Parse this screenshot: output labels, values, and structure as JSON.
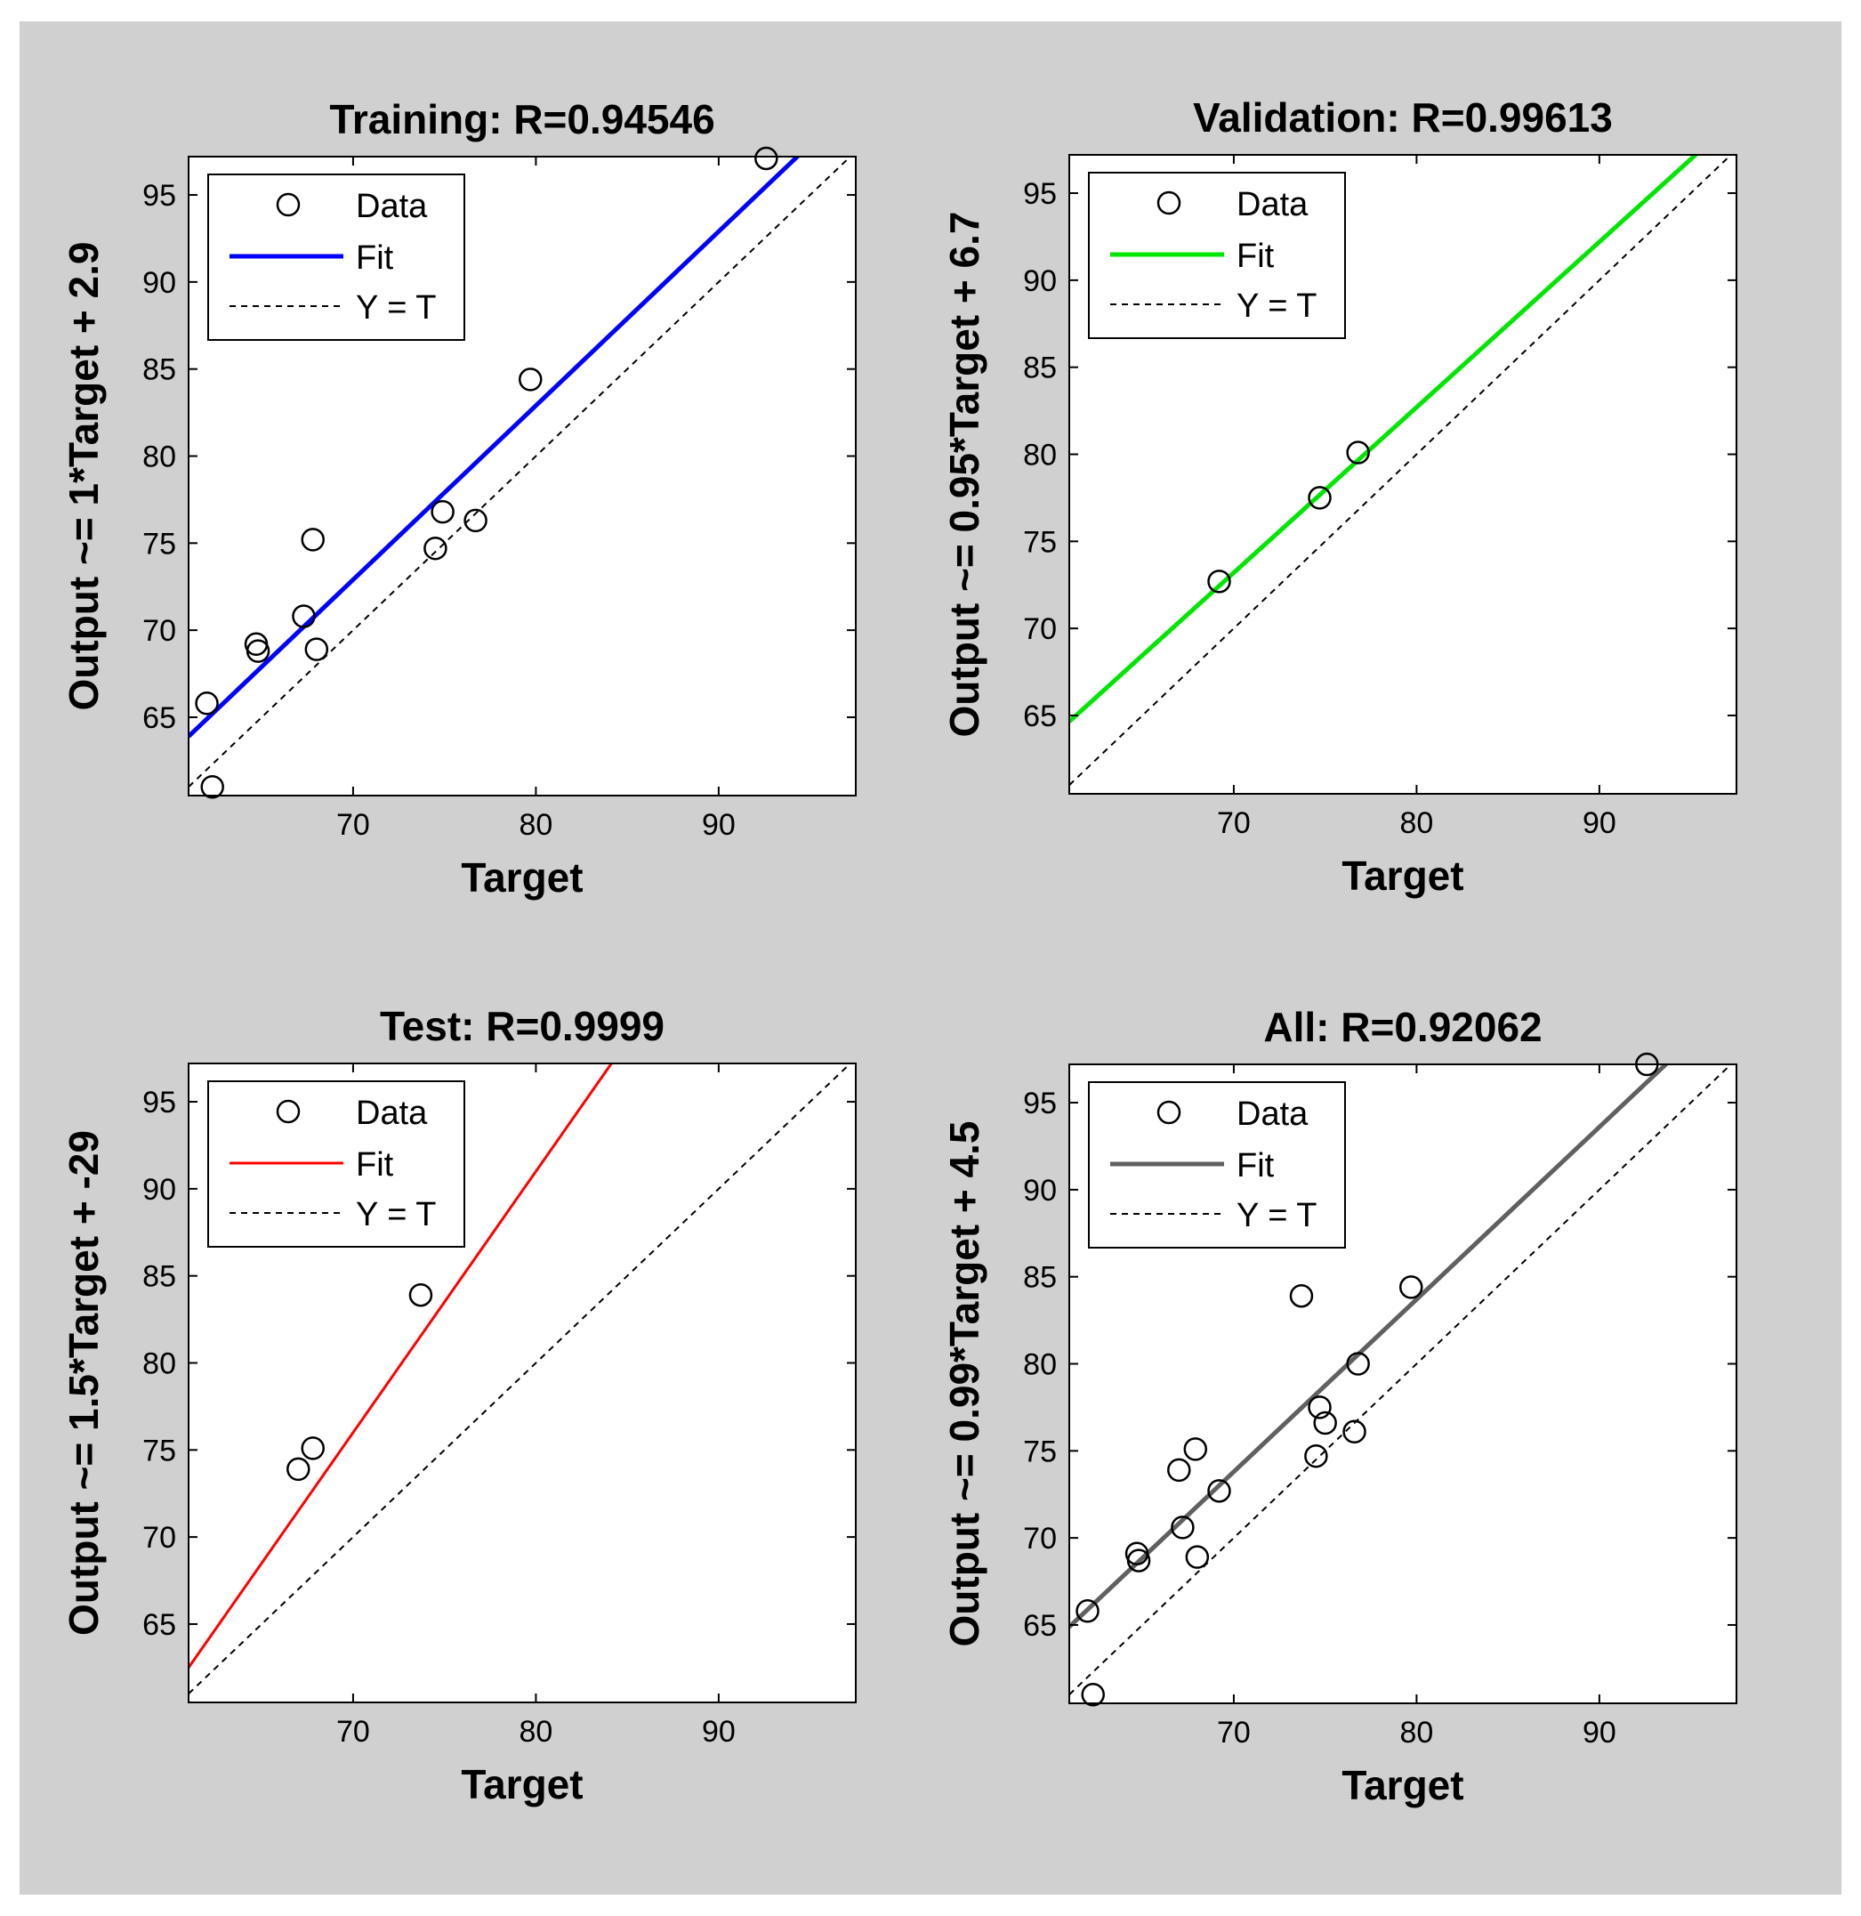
{
  "chart_data": [
    {
      "type": "scatter",
      "title": "Training: R=0.94546",
      "xlabel": "Target",
      "ylabel": "Output ~= 1*Target + 2.9",
      "xlim": [
        61,
        97.5
      ],
      "ylim": [
        60.5,
        97.2
      ],
      "xticks": [
        70,
        80,
        90
      ],
      "yticks": [
        65,
        70,
        75,
        80,
        85,
        90,
        95
      ],
      "fit_color": "#0000ff",
      "fit_width": 5,
      "fit": {
        "slope": 1.0,
        "intercept": 2.9
      },
      "legend": [
        "Data",
        "Fit",
        "Y = T"
      ],
      "legend_position": "top-left",
      "points": [
        [
          62.0,
          65.8
        ],
        [
          62.3,
          61.0
        ],
        [
          64.7,
          69.2
        ],
        [
          64.8,
          68.8
        ],
        [
          67.3,
          70.8
        ],
        [
          67.8,
          75.2
        ],
        [
          68.0,
          68.9
        ],
        [
          74.5,
          74.7
        ],
        [
          74.9,
          76.8
        ],
        [
          76.7,
          76.3
        ],
        [
          79.7,
          84.4
        ],
        [
          92.6,
          97.1
        ]
      ]
    },
    {
      "type": "scatter",
      "title": "Validation: R=0.99613",
      "xlabel": "Target",
      "ylabel": "Output ~= 0.95*Target + 6.7",
      "xlim": [
        61,
        97.5
      ],
      "ylim": [
        60.5,
        97.2
      ],
      "xticks": [
        70,
        80,
        90
      ],
      "yticks": [
        65,
        70,
        75,
        80,
        85,
        90,
        95
      ],
      "fit_color": "#00e600",
      "fit_width": 5,
      "fit": {
        "slope": 0.95,
        "intercept": 6.7
      },
      "legend": [
        "Data",
        "Fit",
        "Y = T"
      ],
      "legend_position": "top-left",
      "points": [
        [
          69.2,
          72.7
        ],
        [
          74.7,
          77.5
        ],
        [
          76.8,
          80.1
        ]
      ]
    },
    {
      "type": "scatter",
      "title": "Test: R=0.9999",
      "xlabel": "Target",
      "ylabel": "Output ~= 1.5*Target + -29",
      "xlim": [
        61,
        97.5
      ],
      "ylim": [
        60.5,
        97.2
      ],
      "xticks": [
        70,
        80,
        90
      ],
      "yticks": [
        65,
        70,
        75,
        80,
        85,
        90,
        95
      ],
      "fit_color": "#ff0000",
      "fit_width": 3,
      "fit": {
        "slope": 1.5,
        "intercept": -29
      },
      "legend": [
        "Data",
        "Fit",
        "Y = T"
      ],
      "legend_position": "top-left",
      "points": [
        [
          67.0,
          73.9
        ],
        [
          67.8,
          75.1
        ],
        [
          73.7,
          83.9
        ]
      ]
    },
    {
      "type": "scatter",
      "title": "All: R=0.92062",
      "xlabel": "Target",
      "ylabel": "Output ~= 0.99*Target + 4.5",
      "xlim": [
        61,
        97.5
      ],
      "ylim": [
        60.5,
        97.2
      ],
      "xticks": [
        70,
        80,
        90
      ],
      "yticks": [
        65,
        70,
        75,
        80,
        85,
        90,
        95
      ],
      "fit_color": "#606060",
      "fit_width": 5,
      "fit": {
        "slope": 0.99,
        "intercept": 4.5
      },
      "legend": [
        "Data",
        "Fit",
        "Y = T"
      ],
      "legend_position": "top-left",
      "points": [
        [
          62.0,
          65.8
        ],
        [
          62.3,
          61.0
        ],
        [
          64.7,
          69.1
        ],
        [
          64.8,
          68.7
        ],
        [
          67.0,
          73.9
        ],
        [
          67.2,
          70.6
        ],
        [
          67.9,
          75.1
        ],
        [
          68.0,
          68.9
        ],
        [
          69.2,
          72.7
        ],
        [
          73.7,
          83.9
        ],
        [
          74.5,
          74.7
        ],
        [
          74.7,
          77.5
        ],
        [
          75.0,
          76.6
        ],
        [
          76.6,
          76.1
        ],
        [
          76.8,
          80.0
        ],
        [
          79.7,
          84.4
        ],
        [
          92.6,
          97.2
        ]
      ]
    }
  ]
}
